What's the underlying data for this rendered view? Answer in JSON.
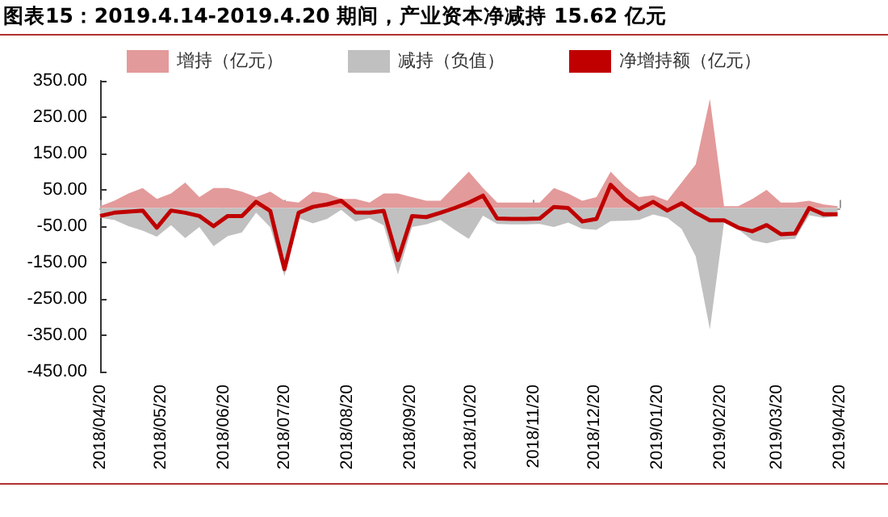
{
  "chart_data": {
    "type": "area",
    "title": "图表15：2019.4.14-2019.4.20 期间，产业资本净减持 15.62 亿元",
    "x": [
      "2018-04-20",
      "2018-04-27",
      "2018-05-04",
      "2018-05-11",
      "2018-05-18",
      "2018-05-25",
      "2018-06-01",
      "2018-06-08",
      "2018-06-15",
      "2018-06-22",
      "2018-06-29",
      "2018-07-06",
      "2018-07-13",
      "2018-07-20",
      "2018-07-27",
      "2018-08-03",
      "2018-08-10",
      "2018-08-17",
      "2018-08-24",
      "2018-08-31",
      "2018-09-07",
      "2018-09-14",
      "2018-09-21",
      "2018-09-28",
      "2018-10-05",
      "2018-10-12",
      "2018-10-19",
      "2018-10-26",
      "2018-11-02",
      "2018-11-09",
      "2018-11-16",
      "2018-11-23",
      "2018-11-30",
      "2018-12-07",
      "2018-12-14",
      "2018-12-21",
      "2018-12-28",
      "2019-01-04",
      "2019-01-11",
      "2019-01-18",
      "2019-01-25",
      "2019-02-01",
      "2019-02-08",
      "2019-02-15",
      "2019-02-22",
      "2019-03-01",
      "2019-03-08",
      "2019-03-15",
      "2019-03-22",
      "2019-03-29",
      "2019-04-05",
      "2019-04-12",
      "2019-04-19"
    ],
    "series": [
      {
        "name": "增持（亿元）",
        "color": "#e39a9a",
        "values": [
          5,
          20,
          40,
          55,
          25,
          40,
          70,
          30,
          55,
          55,
          45,
          30,
          45,
          20,
          15,
          45,
          40,
          25,
          25,
          15,
          40,
          40,
          30,
          20,
          20,
          60,
          100,
          55,
          15,
          15,
          15,
          15,
          55,
          40,
          20,
          30,
          100,
          60,
          30,
          35,
          20,
          70,
          120,
          300,
          5,
          5,
          25,
          50,
          15,
          15,
          20,
          10,
          5
        ]
      },
      {
        "name": "减持（负值）",
        "color": "#c0c0c0",
        "values": [
          -27,
          -33,
          -50,
          -62,
          -79,
          -47,
          -83,
          -52,
          -105,
          -77,
          -67,
          -13,
          -53,
          -188,
          -28,
          -42,
          -30,
          -5,
          -37,
          -28,
          -48,
          -183,
          -52,
          -45,
          -33,
          -60,
          -85,
          -21,
          -44,
          -45,
          -45,
          -44,
          -52,
          -40,
          -57,
          -60,
          -36,
          -35,
          -33,
          -18,
          -27,
          -57,
          -133,
          -334,
          -39,
          -59,
          -89,
          -97,
          -87,
          -85,
          -20,
          -27,
          -22
        ]
      },
      {
        "name": "净增持额（亿元）",
        "type": "line",
        "color": "#c00000",
        "values": [
          -22,
          -13,
          -10,
          -7,
          -54,
          -7,
          -13,
          -22,
          -50,
          -22,
          -22,
          17,
          -8,
          -168,
          -13,
          3,
          10,
          20,
          -12,
          -13,
          -8,
          -143,
          -22,
          -25,
          -13,
          0,
          15,
          34,
          -29,
          -30,
          -30,
          -29,
          3,
          0,
          -37,
          -30,
          64,
          25,
          -3,
          17,
          -7,
          13,
          -13,
          -34,
          -34,
          -54,
          -64,
          -47,
          -72,
          -70,
          0,
          -17,
          -17
        ]
      }
    ],
    "xlim": [
      "2018-04-20",
      "2019-04-20"
    ],
    "xticks": [
      {
        "value": "2018-04-20",
        "label": "2018/04/20"
      },
      {
        "value": "2018-05-20",
        "label": "2018/05/20"
      },
      {
        "value": "2018-06-20",
        "label": "2018/06/20"
      },
      {
        "value": "2018-07-20",
        "label": "2018/07/20"
      },
      {
        "value": "2018-08-20",
        "label": "2018/08/20"
      },
      {
        "value": "2018-09-20",
        "label": "2018/09/20"
      },
      {
        "value": "2018-10-20",
        "label": "2018/10/20"
      },
      {
        "value": "2018-11-20",
        "label": "2018/11/20"
      },
      {
        "value": "2018-12-20",
        "label": "2018/12/20"
      },
      {
        "value": "2019-01-20",
        "label": "2019/01/20"
      },
      {
        "value": "2019-02-20",
        "label": "2019/02/20"
      },
      {
        "value": "2019-03-20",
        "label": "2019/03/20"
      },
      {
        "value": "2019-04-20",
        "label": "2019/04/20"
      }
    ],
    "ylim": [
      -450,
      350
    ],
    "yticks": [
      {
        "value": -450,
        "label": "-450.00"
      },
      {
        "value": -350,
        "label": "-350.00"
      },
      {
        "value": -250,
        "label": "-250.00"
      },
      {
        "value": -150,
        "label": "-150.00"
      },
      {
        "value": -50,
        "label": "-50.00"
      },
      {
        "value": 50,
        "label": "50.00"
      },
      {
        "value": 150,
        "label": "150.00"
      },
      {
        "value": 250,
        "label": "250.00"
      },
      {
        "value": 350,
        "label": "350.00"
      }
    ],
    "legend": "top",
    "grid": false
  }
}
